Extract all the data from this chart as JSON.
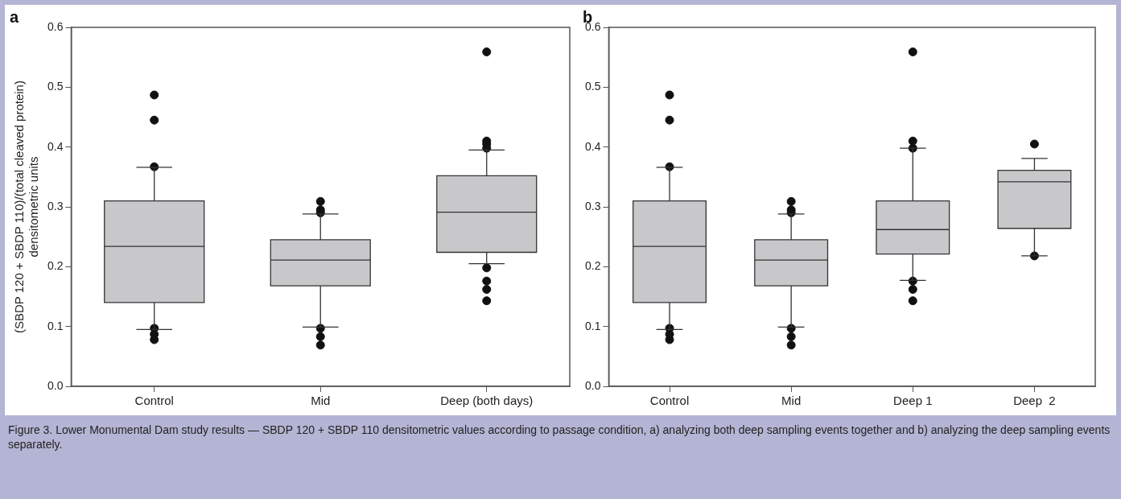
{
  "chart_data": [
    {
      "type": "box",
      "title": "a",
      "ylabel": "(SBDP 120 + SBDP 110)/(total cleaved protein)\ndensitometric units",
      "categories": [
        "Control",
        "Mid",
        "Deep (both days)"
      ],
      "boxes": [
        {
          "low": 0.095,
          "q1": 0.14,
          "median": 0.234,
          "q3": 0.31,
          "high": 0.366,
          "outliers": [
            0.487,
            0.445,
            0.367,
            0.097,
            0.087,
            0.078
          ]
        },
        {
          "low": 0.099,
          "q1": 0.168,
          "median": 0.211,
          "q3": 0.245,
          "high": 0.288,
          "outliers": [
            0.309,
            0.295,
            0.29,
            0.097,
            0.083,
            0.069
          ]
        },
        {
          "low": 0.205,
          "q1": 0.224,
          "median": 0.291,
          "q3": 0.352,
          "high": 0.395,
          "outliers": [
            0.559,
            0.41,
            0.405,
            0.398,
            0.198,
            0.176,
            0.162,
            0.143
          ]
        }
      ],
      "color": "#c8c8cb",
      "marker": "circle",
      "ylim": [
        0,
        0.6
      ],
      "yticks": [
        {
          "value": 0,
          "label": "0.0"
        },
        0.1,
        0.2,
        0.3,
        0.4,
        0.5,
        0.6
      ],
      "grid": false,
      "legend": false,
      "annotations": [
        "Figure 3. Lower Monumental Dam study results — SBDP 120 + SBDP 110 densitometric values according to passage condition, a) analyzing both deep sampling events together and b) analyzing the deep sampling events separately."
      ]
    },
    {
      "type": "box",
      "title": "b",
      "categories": [
        "Control",
        "Mid",
        "Deep 1",
        "Deep  2"
      ],
      "boxes": [
        {
          "low": 0.095,
          "q1": 0.14,
          "median": 0.234,
          "q3": 0.31,
          "high": 0.366,
          "outliers": [
            0.487,
            0.445,
            0.367,
            0.097,
            0.087,
            0.078
          ]
        },
        {
          "low": 0.099,
          "q1": 0.168,
          "median": 0.211,
          "q3": 0.245,
          "high": 0.288,
          "outliers": [
            0.309,
            0.295,
            0.29,
            0.097,
            0.083,
            0.069
          ]
        },
        {
          "low": 0.177,
          "q1": 0.221,
          "median": 0.262,
          "q3": 0.31,
          "high": 0.398,
          "outliers": [
            0.559,
            0.41,
            0.398,
            0.176,
            0.162,
            0.143
          ]
        },
        {
          "low": 0.218,
          "q1": 0.264,
          "median": 0.342,
          "q3": 0.361,
          "high": 0.381,
          "outliers": [
            0.405,
            0.218
          ]
        }
      ],
      "color": "#c8c8cb",
      "marker": "circle",
      "ylim": [
        0,
        0.6
      ],
      "yticks": [
        {
          "value": 0,
          "label": "0.0"
        },
        0.1,
        0.2,
        0.3,
        0.4,
        0.5,
        0.6
      ],
      "grid": false,
      "legend": false
    }
  ]
}
